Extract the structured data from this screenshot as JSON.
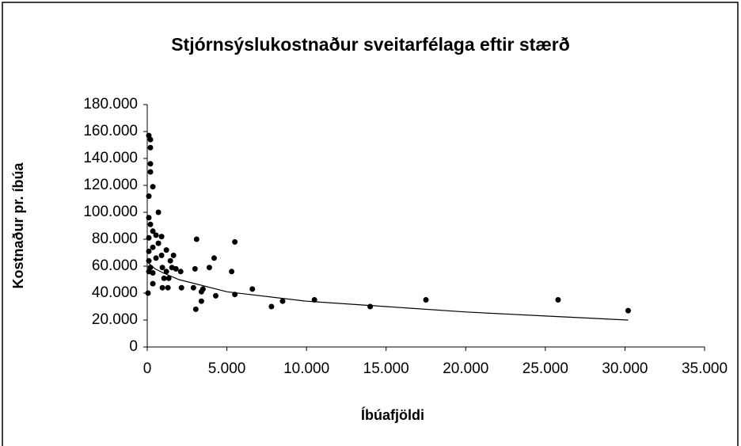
{
  "chart_data": {
    "type": "scatter",
    "title": "Stjórnsýslukostnaður sveitarfélaga eftir stærð",
    "x_label": "Íbúafjöldi",
    "y_label": "Kostnaður pr. íbúa",
    "color": "#000000",
    "x": [
      100,
      200,
      200,
      200,
      200,
      350,
      100,
      700,
      100,
      200,
      100,
      350,
      550,
      700,
      350,
      100,
      550,
      100,
      200,
      100,
      350,
      50,
      350,
      950,
      950,
      1300,
      1050,
      1350,
      900,
      1650,
      1450,
      1200,
      1800,
      2100,
      1550,
      900,
      1200,
      3100,
      3000,
      2900,
      2150,
      3050,
      3400,
      3500,
      4200,
      4300,
      3400,
      3900,
      5500,
      5500,
      5300,
      6600,
      7800,
      8500,
      10500,
      14000,
      17500,
      25800,
      30200
    ],
    "y": [
      157000,
      154000,
      148000,
      136000,
      130000,
      119000,
      112000,
      100000,
      96000,
      91000,
      81000,
      86000,
      83000,
      77000,
      74000,
      71000,
      66000,
      64000,
      59000,
      56000,
      55000,
      40000,
      47000,
      59000,
      44000,
      44000,
      51000,
      51000,
      82000,
      68000,
      64000,
      56000,
      58000,
      56000,
      59000,
      68000,
      72000,
      80000,
      58000,
      44000,
      44000,
      28000,
      34000,
      43000,
      66000,
      38000,
      41000,
      59000,
      78000,
      39000,
      56000,
      43000,
      30000,
      34000,
      35000,
      30000,
      35000,
      35000,
      27000
    ],
    "trendline": {
      "x": [
        100,
        500,
        1000,
        2000,
        5000,
        10000,
        15000,
        20000,
        25000,
        30200
      ],
      "y": [
        62000,
        58000,
        55000,
        50000,
        41000,
        34000,
        30000,
        26000,
        23000,
        20000
      ]
    },
    "xlim": [
      0,
      35000
    ],
    "xticks": [
      0,
      {
        "value": 5000,
        "label": "5.000"
      },
      {
        "value": 10000,
        "label": "10.000"
      },
      {
        "value": 15000,
        "label": "15.000"
      },
      {
        "value": 20000,
        "label": "20.000"
      },
      {
        "value": 25000,
        "label": "25.000"
      },
      {
        "value": 30000,
        "label": "30.000"
      },
      {
        "value": 35000,
        "label": "35.000"
      }
    ],
    "ylim": [
      0,
      180000
    ],
    "yticks": [
      0,
      {
        "value": 20000,
        "label": "20.000"
      },
      {
        "value": 40000,
        "label": "40.000"
      },
      {
        "value": 60000,
        "label": "60.000"
      },
      {
        "value": 80000,
        "label": "80.000"
      },
      {
        "value": 100000,
        "label": "100.000"
      },
      {
        "value": 120000,
        "label": "120.000"
      },
      {
        "value": 140000,
        "label": "140.000"
      },
      {
        "value": 160000,
        "label": "160.000"
      },
      {
        "value": 180000,
        "label": "180.000"
      }
    ]
  }
}
